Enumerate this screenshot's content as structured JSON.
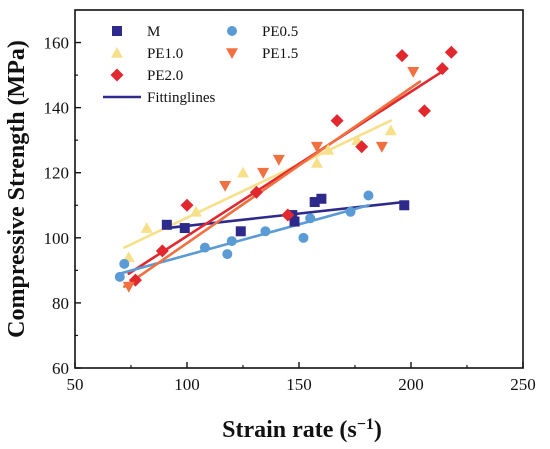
{
  "chart_data": {
    "type": "scatter",
    "title": "",
    "xlabel": "Strain rate (s",
    "xlabel_sup": "−1",
    "xlabel_tail": ")",
    "ylabel": "Compressive Strength (MPa)",
    "xlim": [
      50,
      250
    ],
    "ylim": [
      60,
      170
    ],
    "xticks": [
      50,
      100,
      150,
      200,
      250
    ],
    "yticks": [
      60,
      80,
      100,
      120,
      140,
      160
    ],
    "grid": false,
    "legend_position": "top-left",
    "series": [
      {
        "name": "M",
        "marker": "square",
        "color": "#2e2a8c",
        "points": [
          [
            91,
            104
          ],
          [
            99,
            103
          ],
          [
            124,
            102
          ],
          [
            147,
            107
          ],
          [
            148,
            105
          ],
          [
            157,
            111
          ],
          [
            160,
            112
          ],
          [
            197,
            110
          ]
        ],
        "fit": [
          [
            91,
            103
          ],
          [
            197,
            111
          ]
        ]
      },
      {
        "name": "PE1.0",
        "marker": "triangle-up",
        "color": "#f7e08a",
        "points": [
          [
            74,
            94
          ],
          [
            82,
            103
          ],
          [
            104,
            108
          ],
          [
            125,
            120
          ],
          [
            158,
            123
          ],
          [
            163,
            127
          ],
          [
            176,
            130
          ],
          [
            191,
            133
          ]
        ],
        "fit": [
          [
            72,
            97
          ],
          [
            191,
            136
          ]
        ]
      },
      {
        "name": "PE2.0",
        "marker": "diamond",
        "color": "#e0282e",
        "points": [
          [
            77,
            87
          ],
          [
            89,
            96
          ],
          [
            100,
            110
          ],
          [
            131,
            114
          ],
          [
            145,
            107
          ],
          [
            167,
            136
          ],
          [
            178,
            128
          ],
          [
            196,
            156
          ],
          [
            214,
            152
          ],
          [
            206,
            139
          ],
          [
            218,
            157
          ]
        ],
        "fit": [
          [
            74,
            89
          ],
          [
            216,
            152
          ]
        ]
      },
      {
        "name": "PE0.5",
        "marker": "circle",
        "color": "#5b9bd5",
        "points": [
          [
            70,
            88
          ],
          [
            72,
            92
          ],
          [
            108,
            97
          ],
          [
            118,
            95
          ],
          [
            120,
            99
          ],
          [
            135,
            102
          ],
          [
            152,
            100
          ],
          [
            155,
            106
          ],
          [
            173,
            108
          ],
          [
            181,
            113
          ]
        ],
        "fit": [
          [
            70,
            89
          ],
          [
            181,
            110
          ]
        ]
      },
      {
        "name": "PE1.5",
        "marker": "triangle-down",
        "color": "#f07040",
        "points": [
          [
            74,
            85
          ],
          [
            117,
            116
          ],
          [
            134,
            120
          ],
          [
            141,
            124
          ],
          [
            158,
            128
          ],
          [
            187,
            128
          ],
          [
            201,
            151
          ]
        ],
        "fit": [
          [
            72,
            85
          ],
          [
            204,
            148
          ]
        ]
      }
    ],
    "fitting_legend": {
      "name": "Fittinglines",
      "color": "#2e2a8c"
    }
  }
}
